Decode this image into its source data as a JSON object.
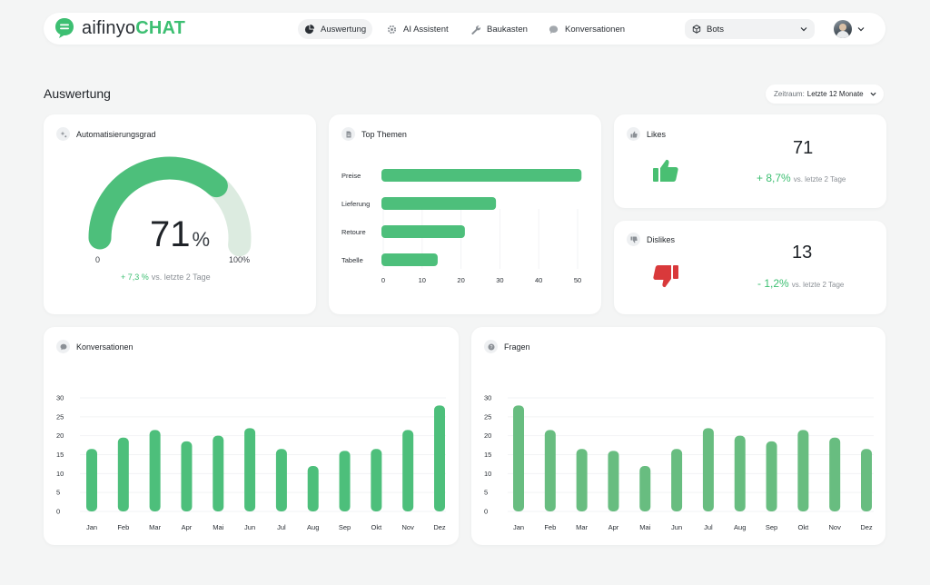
{
  "brand": {
    "prefix": "aifinyo",
    "suffix": "CHAT"
  },
  "nav": {
    "items": [
      {
        "label": "Auswertung",
        "active": true
      },
      {
        "label": "AI Assistent",
        "active": false
      },
      {
        "label": "Baukasten",
        "active": false
      },
      {
        "label": "Konversationen",
        "active": false
      }
    ],
    "bots_select": "Bots"
  },
  "page": {
    "title": "Auswertung",
    "period_label": "Zeitraum:",
    "period_value": "Letzte 12 Monate"
  },
  "automation": {
    "title": "Automatisierungsgrad",
    "value": "71",
    "value_fraction": 0.71,
    "unit": "%",
    "min": "0",
    "max": "100%",
    "delta": "+ 7,3 %",
    "delta_text": "vs. letzte 2 Tage"
  },
  "likes": {
    "title": "Likes",
    "value": "71",
    "delta": "+ 8,7%",
    "delta_text": "vs. letzte 2 Tage",
    "icon": "thumbs-up-icon",
    "color": "#49bf72"
  },
  "dislikes": {
    "title": "Dislikes",
    "value": "13",
    "delta": "- 1,2%",
    "delta_text": "vs. letzte 2 Tage",
    "icon": "thumbs-down-icon",
    "color": "#d9393b"
  },
  "top_themen": {
    "title": "Top Themen",
    "chart_data": {
      "type": "bar",
      "orientation": "horizontal",
      "categories": [
        "Preise",
        "Lieferung",
        "Retoure",
        "Tabelle"
      ],
      "values": [
        51,
        29,
        21,
        14
      ],
      "xticks": [
        "0",
        "10",
        "20",
        "30",
        "40",
        "50"
      ],
      "xlim": [
        0,
        50
      ],
      "color": "#4dbf7b"
    }
  },
  "konversationen": {
    "title": "Konversationen",
    "chart_data": {
      "type": "bar",
      "categories": [
        "Jan",
        "Feb",
        "Mar",
        "Apr",
        "Mai",
        "Jun",
        "Jul",
        "Aug",
        "Sep",
        "Okt",
        "Nov",
        "Dez"
      ],
      "values": [
        16.5,
        19.5,
        21.5,
        18.5,
        20,
        22,
        16.5,
        12,
        16,
        16.5,
        21.5,
        28
      ],
      "yticks": [
        "0",
        "5",
        "10",
        "15",
        "20",
        "25",
        "30"
      ],
      "ylim": [
        0,
        30
      ],
      "color": "#4dbf7b",
      "grid": true
    }
  },
  "fragen": {
    "title": "Fragen",
    "chart_data": {
      "type": "bar",
      "categories": [
        "Jan",
        "Feb",
        "Mar",
        "Apr",
        "Mai",
        "Jun",
        "Jul",
        "Aug",
        "Sep",
        "Okt",
        "Nov",
        "Dez"
      ],
      "values": [
        28,
        21.5,
        16.5,
        16,
        12,
        16.5,
        22,
        20,
        18.5,
        21.5,
        19.5,
        16.5
      ],
      "yticks": [
        "0",
        "5",
        "10",
        "15",
        "20",
        "25",
        "30"
      ],
      "ylim": [
        0,
        30
      ],
      "color": "#68bd80",
      "grid": true
    }
  }
}
